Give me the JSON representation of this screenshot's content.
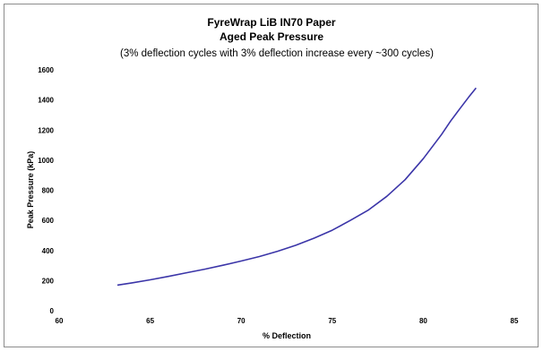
{
  "chart_data": {
    "type": "line",
    "title": "FyreWrap LiB IN70 Paper",
    "subtitle": "Aged Peak Pressure",
    "subtitle2": "(3% deflection cycles with 3% deflection increase every ~300 cycles)",
    "xlabel": "% Deflection",
    "ylabel": "Peak Pressure (kPa)",
    "xlim": [
      60,
      85
    ],
    "ylim": [
      0,
      1600
    ],
    "xticks": [
      "60",
      "65",
      "70",
      "75",
      "80",
      "85"
    ],
    "yticks": [
      "0",
      "200",
      "400",
      "600",
      "800",
      "1000",
      "1200",
      "1400",
      "1600"
    ],
    "grid": false,
    "line_color": "#3b35a8",
    "series": [
      {
        "x": [
          63.2,
          64,
          65,
          66,
          67,
          68,
          69,
          70,
          71,
          72,
          73,
          74,
          75,
          76,
          77,
          78,
          79,
          80,
          81,
          81.5,
          82,
          82.5,
          82.9
        ],
        "y": [
          170,
          185,
          205,
          228,
          252,
          276,
          302,
          330,
          360,
          395,
          435,
          482,
          535,
          600,
          670,
          760,
          870,
          1010,
          1170,
          1260,
          1340,
          1420,
          1480
        ]
      }
    ]
  }
}
